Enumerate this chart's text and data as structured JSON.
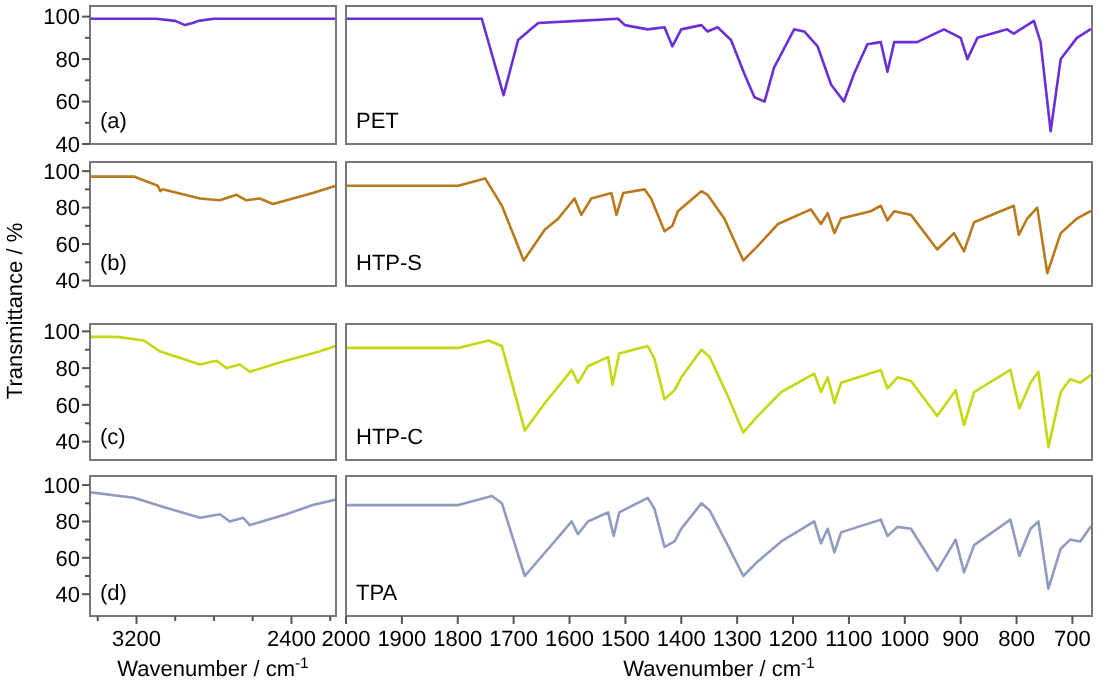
{
  "chart_data": [
    {
      "type": "line",
      "ylabel": "Transmittance / %",
      "xlim": [
        3440,
        2170
      ],
      "ylim": [
        40,
        105
      ],
      "yticks": [
        40,
        {
          "value": 50,
          "label": null
        },
        60,
        {
          "value": 70,
          "label": null
        },
        80,
        {
          "value": 90,
          "label": null
        },
        100
      ],
      "tick_labels": "y",
      "annotations": [
        "(a)"
      ],
      "series": [
        {
          "color": "#6a2fd6",
          "x": [
            3440,
            3100,
            3000,
            2950,
            2910,
            2880,
            2800,
            2170
          ],
          "values": [
            99,
            99,
            98,
            96,
            97,
            98,
            99,
            99
          ]
        }
      ]
    },
    {
      "type": "line",
      "xlim": [
        2000,
        665
      ],
      "ylim": [
        40,
        105
      ],
      "tick_labels": false,
      "series": [
        {
          "name": "PET",
          "color": "#6a2fd6",
          "x": [
            2000,
            1757,
            1718,
            1692,
            1656,
            1585,
            1513,
            1501,
            1460,
            1430,
            1416,
            1400,
            1364,
            1353,
            1335,
            1311,
            1287,
            1269,
            1251,
            1234,
            1198,
            1180,
            1156,
            1132,
            1109,
            1091,
            1067,
            1043,
            1031,
            1019,
            978,
            930,
            900,
            888,
            870,
            817,
            805,
            769,
            757,
            739,
            721,
            692,
            668
          ],
          "values": [
            99,
            99,
            63,
            89,
            97,
            98,
            99,
            96,
            94,
            95,
            86,
            94,
            96,
            93,
            95,
            89,
            73,
            62,
            60,
            76,
            94,
            93,
            86,
            68,
            60,
            73,
            87,
            88,
            74,
            88,
            88,
            94,
            90,
            80,
            90,
            94,
            92,
            98,
            88,
            46,
            80,
            90,
            94
          ]
        }
      ]
    },
    {
      "type": "line",
      "xlim": [
        3440,
        2170
      ],
      "ylim": [
        37,
        105
      ],
      "yticks": [
        40,
        {
          "value": 50,
          "label": null
        },
        60,
        {
          "value": 70,
          "label": null
        },
        80,
        {
          "value": 90,
          "label": null
        },
        100
      ],
      "tick_labels": "y",
      "annotations": [
        "(b)"
      ],
      "series": [
        {
          "color": "#b97a1e",
          "x": [
            3436,
            3213,
            3090,
            3077,
            3065,
            2872,
            2769,
            2684,
            2633,
            2564,
            2495,
            2290,
            2171
          ],
          "values": [
            97,
            97,
            92,
            89,
            90,
            85,
            84,
            87,
            84,
            85,
            82,
            88,
            92
          ]
        }
      ]
    },
    {
      "type": "line",
      "xlim": [
        2000,
        665
      ],
      "ylim": [
        37,
        105
      ],
      "tick_labels": false,
      "series": [
        {
          "name": "HTP-S",
          "color": "#b97a1e",
          "x": [
            2000,
            1799,
            1751,
            1721,
            1682,
            1644,
            1620,
            1591,
            1579,
            1561,
            1525,
            1516,
            1504,
            1466,
            1454,
            1430,
            1416,
            1406,
            1364,
            1353,
            1323,
            1289,
            1263,
            1227,
            1168,
            1150,
            1138,
            1126,
            1114,
            1061,
            1043,
            1031,
            1019,
            989,
            942,
            912,
            894,
            876,
            805,
            796,
            781,
            763,
            745,
            721,
            692,
            668
          ],
          "values": [
            92,
            92,
            96,
            81,
            51,
            68,
            74,
            85,
            76,
            85,
            88,
            76,
            88,
            90,
            85,
            67,
            70,
            78,
            89,
            87,
            74,
            51,
            59,
            71,
            79,
            71,
            77,
            66,
            74,
            78,
            81,
            73,
            78,
            76,
            57,
            66,
            56,
            72,
            81,
            65,
            74,
            80,
            44,
            66,
            74,
            78
          ]
        }
      ]
    },
    {
      "type": "line",
      "xlim": [
        3440,
        2170
      ],
      "ylim": [
        30,
        104
      ],
      "yticks": [
        40,
        {
          "value": 50,
          "label": null
        },
        60,
        {
          "value": 70,
          "label": null
        },
        80,
        {
          "value": 90,
          "label": null
        },
        100
      ],
      "tick_labels": "y",
      "annotations": [
        "(c)"
      ],
      "series": [
        {
          "color": "#c3d810",
          "x": [
            3436,
            3300,
            3162,
            3077,
            2872,
            2786,
            2735,
            2666,
            2615,
            2461,
            2256,
            2171
          ],
          "values": [
            97,
            97,
            95,
            89,
            82,
            84,
            80,
            82,
            78,
            83,
            89,
            92
          ]
        }
      ]
    },
    {
      "type": "line",
      "xlim": [
        2000,
        665
      ],
      "ylim": [
        30,
        104
      ],
      "tick_labels": false,
      "series": [
        {
          "name": "HTP-C",
          "color": "#c3d810",
          "x": [
            2000,
            1799,
            1745,
            1721,
            1680,
            1644,
            1596,
            1585,
            1567,
            1531,
            1523,
            1511,
            1460,
            1448,
            1430,
            1412,
            1400,
            1364,
            1349,
            1317,
            1289,
            1263,
            1221,
            1162,
            1150,
            1138,
            1126,
            1114,
            1043,
            1031,
            1013,
            989,
            942,
            909,
            894,
            876,
            811,
            795,
            775,
            761,
            743,
            721,
            704,
            686,
            668
          ],
          "values": [
            91,
            91,
            95,
            92,
            46,
            61,
            79,
            72,
            81,
            86,
            71,
            88,
            92,
            85,
            63,
            68,
            75,
            90,
            86,
            65,
            45,
            54,
            67,
            77,
            67,
            75,
            61,
            72,
            79,
            69,
            75,
            73,
            54,
            68,
            49,
            67,
            79,
            58,
            72,
            78,
            37,
            67,
            74,
            72,
            76
          ]
        }
      ]
    },
    {
      "type": "line",
      "xlabel": "Wavenumber / cm$^{-1}$",
      "xlim": [
        3440,
        2170
      ],
      "ylim": [
        28,
        105
      ],
      "xticks": [
        {
          "value": 3400,
          "label": null
        },
        3200,
        {
          "value": 3000,
          "label": null
        },
        {
          "value": 2800,
          "label": null
        },
        {
          "value": 2600,
          "label": null
        },
        2400,
        {
          "value": 2200,
          "label": null
        }
      ],
      "yticks": [
        40,
        {
          "value": 50,
          "label": null
        },
        60,
        {
          "value": 70,
          "label": null
        },
        80,
        {
          "value": 90,
          "label": null
        },
        100
      ],
      "annotations": [
        "(d)"
      ],
      "series": [
        {
          "color": "#8f9cc0",
          "x": [
            3436,
            3213,
            3094,
            2872,
            2769,
            2718,
            2649,
            2615,
            2427,
            2290,
            2171
          ],
          "values": [
            96,
            93,
            89,
            82,
            84,
            80,
            82,
            78,
            84,
            89,
            92
          ]
        }
      ]
    },
    {
      "type": "line",
      "xlabel": "Wavenumber / cm$^{-1}$",
      "xlim": [
        2000,
        665
      ],
      "ylim": [
        28,
        105
      ],
      "xticks": [
        2000,
        1900,
        1800,
        1700,
        1600,
        1500,
        1400,
        1300,
        1200,
        1100,
        1000,
        900,
        800,
        700
      ],
      "tick_labels": "x",
      "series": [
        {
          "name": "TPA",
          "color": "#8f9cc0",
          "x": [
            2000,
            1799,
            1739,
            1721,
            1680,
            1638,
            1596,
            1585,
            1567,
            1531,
            1521,
            1511,
            1460,
            1448,
            1430,
            1412,
            1400,
            1364,
            1349,
            1317,
            1289,
            1263,
            1221,
            1162,
            1150,
            1138,
            1126,
            1114,
            1043,
            1031,
            1013,
            989,
            942,
            909,
            894,
            876,
            811,
            795,
            775,
            761,
            743,
            721,
            704,
            686,
            668
          ],
          "values": [
            89,
            89,
            94,
            90,
            50,
            65,
            80,
            73,
            80,
            85,
            72,
            85,
            93,
            87,
            66,
            69,
            76,
            90,
            86,
            67,
            50,
            58,
            69,
            80,
            68,
            76,
            63,
            74,
            81,
            72,
            77,
            76,
            53,
            70,
            52,
            67,
            81,
            61,
            76,
            80,
            43,
            65,
            70,
            69,
            77
          ]
        }
      ]
    }
  ]
}
